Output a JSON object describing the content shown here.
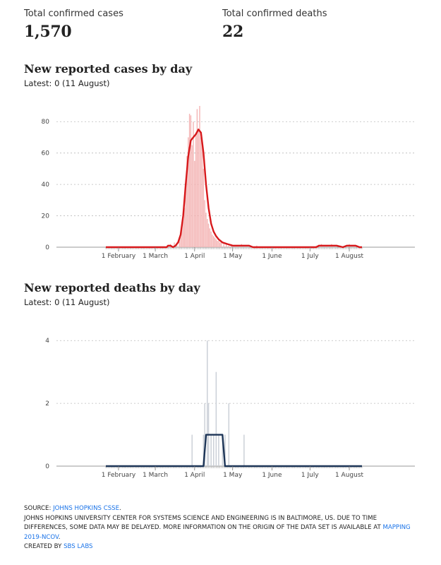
{
  "totals": {
    "cases_label": "Total confirmed cases",
    "cases_value": "1,570",
    "deaths_label": "Total confirmed deaths",
    "deaths_value": "22"
  },
  "cases_section": {
    "title": "New reported cases by day",
    "latest": "Latest: 0 (11 August)"
  },
  "deaths_section": {
    "title": "New reported deaths by day",
    "latest": "Latest: 0 (11 August)"
  },
  "footer": {
    "source_prefix": "SOURCE: ",
    "source_link": "JOHNS HOPKINS CSSE",
    "source_suffix": ".",
    "note": "JOHNS HOPKINS UNIVERSITY CENTER FOR SYSTEMS SCIENCE AND ENGINEERING IS IN BALTIMORE, US. DUE TO TIME DIFFERENCES, SOME DATA MAY BE DELAYED. MORE INFORMATION ON THE ORIGIN OF THE DATA SET IS AVAILABLE AT ",
    "note_link": "MAPPING 2019-NCOV",
    "note_suffix": ".",
    "created_prefix": "CREATED BY ",
    "created_link": "SBS LABS"
  },
  "colors": {
    "cases_line": "#d7191c",
    "cases_bar": "#f4b6b6",
    "deaths_line": "#1d3557",
    "deaths_bar": "#c9ced6"
  },
  "chart_data": [
    {
      "type": "bar",
      "title": "New reported cases by day",
      "x_start": "22 January",
      "x_end": "11 August",
      "xlim": [
        "22 January",
        "11 August"
      ],
      "ylim": [
        0,
        90
      ],
      "yticks": [
        0,
        20,
        40,
        60,
        80
      ],
      "xtick_labels": [
        "1 February",
        "1 March",
        "1 April",
        "1 May",
        "1 June",
        "1 July",
        "1 August"
      ],
      "grid": true,
      "series": [
        {
          "kind": "bars",
          "points": [
            [
              "13 March",
              2
            ],
            [
              "14 March",
              1
            ],
            [
              "16 March",
              3
            ],
            [
              "18 March",
              3
            ],
            [
              "20 March",
              6
            ],
            [
              "21 March",
              8
            ],
            [
              "22 March",
              12
            ],
            [
              "23 March",
              18
            ],
            [
              "24 March",
              25
            ],
            [
              "25 March",
              40
            ],
            [
              "26 March",
              58
            ],
            [
              "27 March",
              70
            ],
            [
              "28 March",
              85
            ],
            [
              "29 March",
              84
            ],
            [
              "30 March",
              65
            ],
            [
              "31 March",
              80
            ],
            [
              "1 April",
              55
            ],
            [
              "2 April",
              72
            ],
            [
              "3 April",
              88
            ],
            [
              "4 April",
              75
            ],
            [
              "5 April",
              90
            ],
            [
              "6 April",
              70
            ],
            [
              "7 April",
              65
            ],
            [
              "8 April",
              50
            ],
            [
              "9 April",
              30
            ],
            [
              "10 April",
              22
            ],
            [
              "11 April",
              18
            ],
            [
              "12 April",
              15
            ],
            [
              "13 April",
              12
            ],
            [
              "14 April",
              10
            ],
            [
              "15 April",
              8
            ],
            [
              "16 April",
              7
            ],
            [
              "17 April",
              6
            ],
            [
              "18 April",
              5
            ],
            [
              "19 April",
              4
            ],
            [
              "20 April",
              4
            ],
            [
              "21 April",
              3
            ],
            [
              "22 April",
              3
            ],
            [
              "24 April",
              2
            ],
            [
              "26 April",
              2
            ],
            [
              "28 April",
              1
            ],
            [
              "30 April",
              2
            ],
            [
              "3 May",
              1
            ],
            [
              "5 May",
              1
            ],
            [
              "8 May",
              2
            ],
            [
              "11 May",
              1
            ],
            [
              "14 May",
              1
            ],
            [
              "20 May",
              1
            ],
            [
              "6 July",
              1
            ],
            [
              "10 July",
              2
            ],
            [
              "14 July",
              1
            ],
            [
              "18 July",
              2
            ],
            [
              "25 July",
              1
            ],
            [
              "1 August",
              2
            ],
            [
              "5 August",
              1
            ]
          ]
        },
        {
          "kind": "line",
          "points": [
            [
              "22 January",
              0
            ],
            [
              "10 March",
              0
            ],
            [
              "11 March",
              1
            ],
            [
              "13 March",
              1
            ],
            [
              "15 March",
              0
            ],
            [
              "17 March",
              1
            ],
            [
              "19 March",
              3
            ],
            [
              "21 March",
              8
            ],
            [
              "23 March",
              20
            ],
            [
              "25 March",
              40
            ],
            [
              "27 March",
              58
            ],
            [
              "29 March",
              68
            ],
            [
              "31 March",
              70
            ],
            [
              "2 April",
              72
            ],
            [
              "4 April",
              75
            ],
            [
              "6 April",
              73
            ],
            [
              "8 April",
              60
            ],
            [
              "10 April",
              40
            ],
            [
              "12 April",
              25
            ],
            [
              "14 April",
              15
            ],
            [
              "16 April",
              10
            ],
            [
              "18 April",
              7
            ],
            [
              "20 April",
              5
            ],
            [
              "23 April",
              3
            ],
            [
              "27 April",
              2
            ],
            [
              "1 May",
              1
            ],
            [
              "5 May",
              1
            ],
            [
              "10 May",
              1
            ],
            [
              "14 May",
              1
            ],
            [
              "17 May",
              0
            ],
            [
              "6 July",
              0
            ],
            [
              "8 July",
              1
            ],
            [
              "12 July",
              1
            ],
            [
              "17 July",
              1
            ],
            [
              "22 July",
              1
            ],
            [
              "27 July",
              0
            ],
            [
              "30 July",
              1
            ],
            [
              "3 August",
              1
            ],
            [
              "6 August",
              1
            ],
            [
              "9 August",
              0
            ],
            [
              "11 August",
              0
            ]
          ]
        }
      ]
    },
    {
      "type": "bar",
      "title": "New reported deaths by day",
      "x_start": "22 January",
      "x_end": "11 August",
      "xlim": [
        "22 January",
        "11 August"
      ],
      "ylim": [
        0,
        4.5
      ],
      "yticks": [
        0,
        2,
        4
      ],
      "xtick_labels": [
        "1 February",
        "1 March",
        "1 April",
        "1 May",
        "1 June",
        "1 July",
        "1 August"
      ],
      "grid": true,
      "series": [
        {
          "kind": "bars",
          "points": [
            [
              "30 March",
              1
            ],
            [
              "8 April",
              1
            ],
            [
              "9 April",
              2
            ],
            [
              "11 April",
              4
            ],
            [
              "12 April",
              2
            ],
            [
              "14 April",
              1
            ],
            [
              "16 April",
              1
            ],
            [
              "18 April",
              3
            ],
            [
              "20 April",
              1
            ],
            [
              "23 April",
              1
            ],
            [
              "25 April",
              1
            ],
            [
              "28 April",
              2
            ],
            [
              "10 May",
              1
            ]
          ]
        },
        {
          "kind": "line",
          "points": [
            [
              "22 January",
              0
            ],
            [
              "8 April",
              0
            ],
            [
              "10 April",
              1
            ],
            [
              "23 April",
              1
            ],
            [
              "25 April",
              0
            ],
            [
              "11 August",
              0
            ]
          ]
        }
      ]
    }
  ]
}
